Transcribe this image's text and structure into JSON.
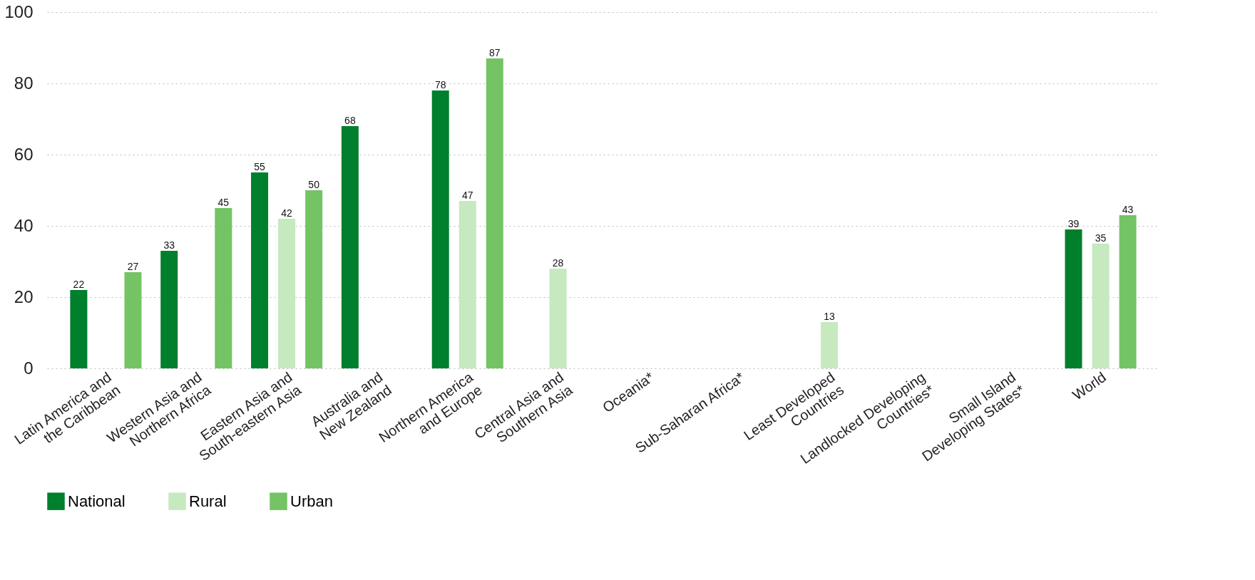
{
  "chart_data": {
    "type": "bar",
    "categories": [
      "Latin America and the Caribbean",
      "Western Asia and Northern Africa",
      "Eastern Asia and South-eastern Asia",
      "Australia and New Zealand",
      "Northern America and Europe",
      "Central Asia and Southern Asia",
      "Oceania*",
      "Sub-Saharan Africa*",
      "Least Developed Countries",
      "Landlocked Developing Countries*",
      "Small Island Developing States*",
      "World"
    ],
    "series": [
      {
        "name": "National",
        "color": "#007f2d",
        "values": [
          22,
          33,
          55,
          68,
          78,
          null,
          null,
          null,
          null,
          null,
          null,
          39
        ]
      },
      {
        "name": "Rural",
        "color": "#c6e9c0",
        "values": [
          null,
          null,
          42,
          null,
          47,
          28,
          null,
          null,
          13,
          null,
          null,
          35
        ]
      },
      {
        "name": "Urban",
        "color": "#74c365",
        "values": [
          27,
          45,
          50,
          null,
          87,
          null,
          null,
          null,
          null,
          null,
          null,
          43
        ]
      }
    ],
    "ylim": [
      0,
      100
    ],
    "yticks": [
      0,
      20,
      40,
      60,
      80,
      100
    ],
    "grid": "y",
    "legend": "bottom",
    "data_labels": true
  }
}
